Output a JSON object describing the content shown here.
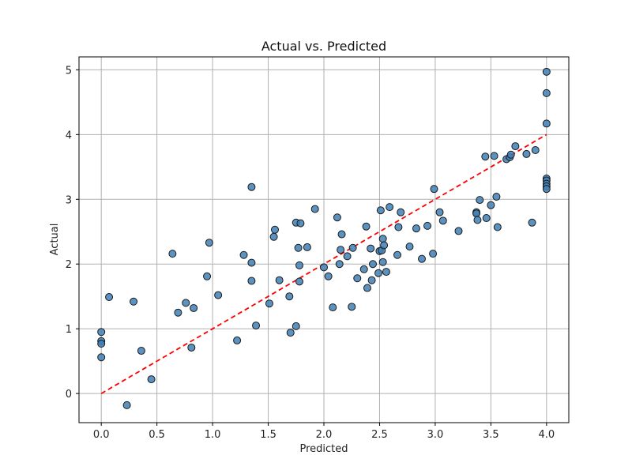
{
  "chart_data": {
    "type": "scatter",
    "title": "Actual vs. Predicted",
    "xlabel": "Predicted",
    "ylabel": "Actual",
    "xlim": [
      -0.2,
      4.2
    ],
    "ylim": [
      -0.45,
      5.2
    ],
    "xticks": [
      0.0,
      0.5,
      1.0,
      1.5,
      2.0,
      2.5,
      3.0,
      3.5,
      4.0
    ],
    "xtick_labels": [
      "0.0",
      "0.5",
      "1.0",
      "1.5",
      "2.0",
      "2.5",
      "3.0",
      "3.5",
      "4.0"
    ],
    "yticks": [
      0,
      1,
      2,
      3,
      4,
      5
    ],
    "ytick_labels": [
      "0",
      "1",
      "2",
      "3",
      "4",
      "5"
    ],
    "grid": true,
    "points": [
      [
        0.0,
        0.95
      ],
      [
        0.0,
        0.81
      ],
      [
        0.0,
        0.77
      ],
      [
        0.0,
        0.56
      ],
      [
        0.07,
        1.49
      ],
      [
        0.23,
        -0.18
      ],
      [
        0.29,
        1.42
      ],
      [
        0.36,
        0.66
      ],
      [
        0.45,
        0.22
      ],
      [
        0.64,
        2.16
      ],
      [
        0.69,
        1.25
      ],
      [
        0.76,
        1.4
      ],
      [
        0.81,
        0.71
      ],
      [
        0.83,
        1.32
      ],
      [
        0.95,
        1.81
      ],
      [
        0.97,
        2.33
      ],
      [
        1.05,
        1.52
      ],
      [
        1.22,
        0.82
      ],
      [
        1.28,
        2.14
      ],
      [
        1.35,
        3.19
      ],
      [
        1.35,
        2.02
      ],
      [
        1.35,
        1.74
      ],
      [
        1.39,
        1.05
      ],
      [
        1.51,
        1.39
      ],
      [
        1.55,
        2.42
      ],
      [
        1.56,
        2.53
      ],
      [
        1.6,
        1.75
      ],
      [
        1.69,
        1.5
      ],
      [
        1.7,
        0.94
      ],
      [
        1.75,
        1.04
      ],
      [
        1.75,
        2.64
      ],
      [
        1.77,
        2.25
      ],
      [
        1.78,
        1.73
      ],
      [
        1.78,
        1.98
      ],
      [
        1.79,
        2.63
      ],
      [
        1.85,
        2.26
      ],
      [
        1.92,
        2.85
      ],
      [
        2.0,
        1.95
      ],
      [
        2.04,
        1.81
      ],
      [
        2.08,
        1.33
      ],
      [
        2.12,
        2.72
      ],
      [
        2.14,
        2.0
      ],
      [
        2.15,
        2.22
      ],
      [
        2.16,
        2.46
      ],
      [
        2.21,
        2.12
      ],
      [
        2.25,
        1.34
      ],
      [
        2.26,
        2.25
      ],
      [
        2.3,
        1.78
      ],
      [
        2.36,
        1.92
      ],
      [
        2.38,
        2.58
      ],
      [
        2.39,
        1.63
      ],
      [
        2.42,
        2.24
      ],
      [
        2.43,
        1.75
      ],
      [
        2.44,
        2.0
      ],
      [
        2.49,
        1.86
      ],
      [
        2.5,
        2.2
      ],
      [
        2.51,
        2.83
      ],
      [
        2.52,
        2.21
      ],
      [
        2.53,
        2.03
      ],
      [
        2.53,
        2.39
      ],
      [
        2.54,
        2.29
      ],
      [
        2.56,
        1.88
      ],
      [
        2.59,
        2.88
      ],
      [
        2.66,
        2.14
      ],
      [
        2.67,
        2.57
      ],
      [
        2.69,
        2.8
      ],
      [
        2.77,
        2.27
      ],
      [
        2.83,
        2.55
      ],
      [
        2.88,
        2.08
      ],
      [
        2.93,
        2.59
      ],
      [
        2.98,
        2.16
      ],
      [
        2.99,
        3.16
      ],
      [
        3.04,
        2.8
      ],
      [
        3.07,
        2.67
      ],
      [
        3.21,
        2.51
      ],
      [
        3.37,
        2.8
      ],
      [
        3.37,
        2.78
      ],
      [
        3.38,
        2.68
      ],
      [
        3.4,
        2.99
      ],
      [
        3.45,
        3.66
      ],
      [
        3.46,
        2.71
      ],
      [
        3.5,
        2.91
      ],
      [
        3.53,
        3.67
      ],
      [
        3.55,
        3.04
      ],
      [
        3.56,
        2.57
      ],
      [
        3.64,
        3.62
      ],
      [
        3.67,
        3.65
      ],
      [
        3.68,
        3.69
      ],
      [
        3.72,
        3.82
      ],
      [
        3.82,
        3.7
      ],
      [
        3.87,
        2.64
      ],
      [
        3.9,
        3.76
      ],
      [
        4.0,
        4.97
      ],
      [
        4.0,
        4.64
      ],
      [
        4.0,
        4.17
      ],
      [
        4.0,
        3.32
      ],
      [
        4.0,
        3.29
      ],
      [
        4.0,
        3.24
      ],
      [
        4.0,
        3.2
      ],
      [
        4.0,
        3.16
      ]
    ],
    "reference_line": {
      "x": [
        0,
        4
      ],
      "y": [
        0,
        4
      ],
      "style": "dashed"
    },
    "colors": {
      "marker_fill": "#3f7fb5",
      "marker_edge": "#1a1a1a",
      "reference_line": "#ff0000",
      "grid": "#b0b0b0",
      "axes": "#000000"
    }
  }
}
